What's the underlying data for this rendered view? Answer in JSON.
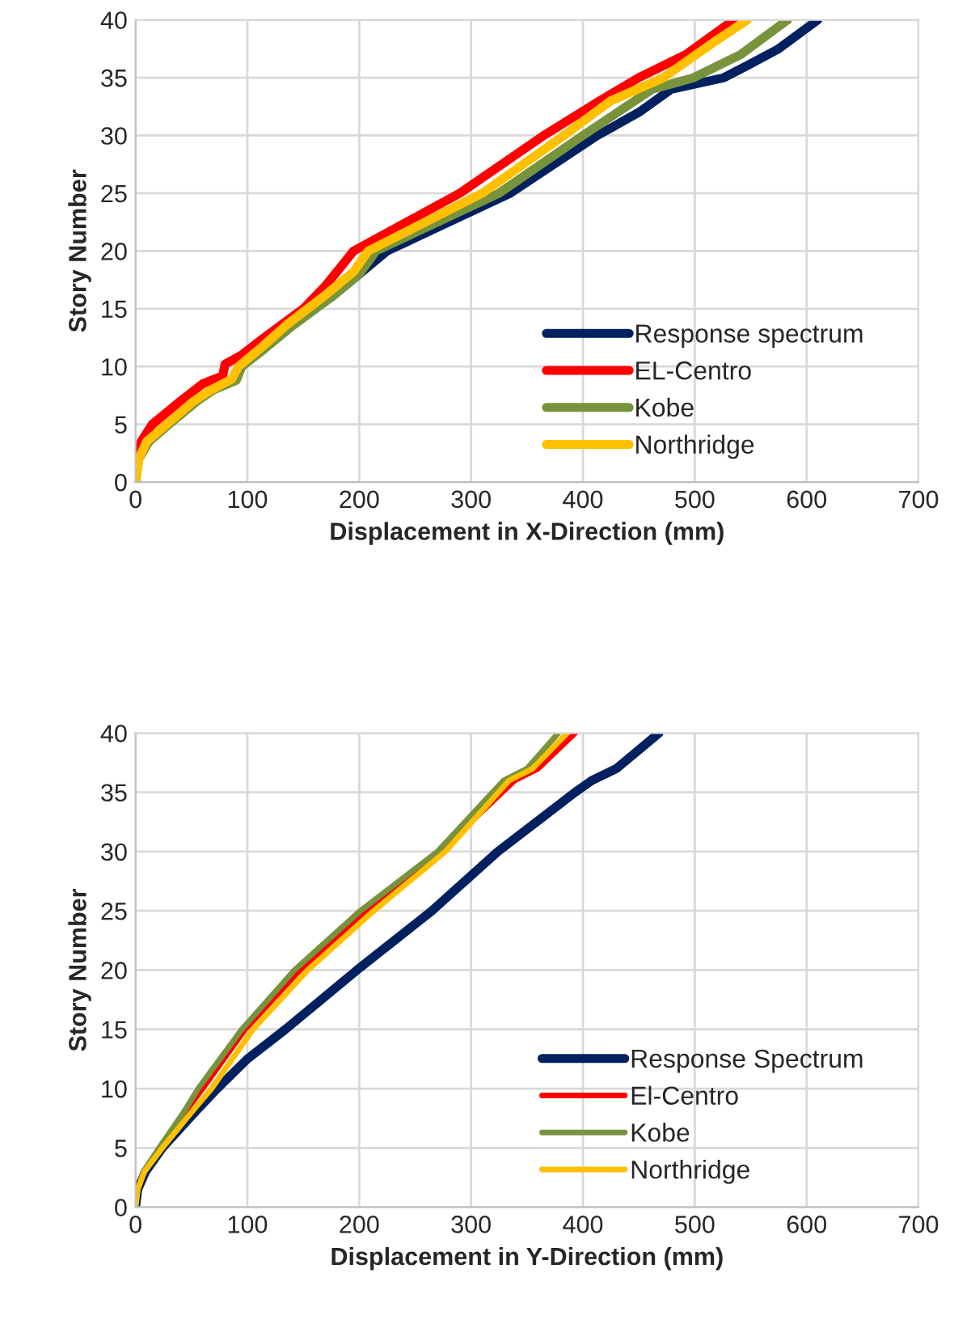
{
  "chart_data": [
    {
      "type": "line",
      "xlabel": "Displacement in X-Direction (mm)",
      "ylabel": "Story Number",
      "xlim": [
        0,
        700
      ],
      "xticks": [
        0,
        100,
        200,
        300,
        400,
        500,
        600,
        700
      ],
      "ylim": [
        0,
        40
      ],
      "yticks": [
        0,
        5,
        10,
        15,
        20,
        25,
        30,
        35,
        40
      ],
      "grid": true,
      "legend": "bottom right",
      "marker": "none",
      "line_style": "solid",
      "series": [
        {
          "name": "Response spectrum",
          "color": "#002060",
          "x": [
            175,
            200,
            225,
            335,
            413,
            450,
            479,
            526,
            546,
            575,
            610
          ],
          "values": [
            16,
            18,
            20,
            25,
            30,
            32,
            34,
            35,
            36,
            37.5,
            40
          ]
        },
        {
          "name": "EL-Centro",
          "color": "#ff0000",
          "x": [
            0,
            2,
            5,
            15,
            40,
            60,
            78,
            80,
            95,
            115,
            150,
            170,
            195,
            290,
            365,
            415,
            450,
            492,
            535
          ],
          "values": [
            0,
            2,
            3.5,
            5,
            7,
            8.5,
            9.2,
            10.2,
            11,
            12.5,
            15,
            17,
            20,
            25,
            30,
            33,
            35,
            37,
            40
          ]
        },
        {
          "name": "Kobe",
          "color": "#77933c",
          "x": [
            0,
            3,
            12,
            30,
            55,
            70,
            90,
            95,
            115,
            140,
            175,
            200,
            215,
            325,
            400,
            462,
            499,
            541,
            583
          ],
          "values": [
            0,
            2,
            3.5,
            5,
            7,
            8,
            8.8,
            10,
            11.5,
            13.5,
            16,
            18,
            20,
            25,
            30,
            34,
            35,
            37,
            40
          ]
        },
        {
          "name": "Northridge",
          "color": "#ffc000",
          "x": [
            0,
            3,
            10,
            28,
            52,
            68,
            86,
            92,
            112,
            135,
            170,
            195,
            208,
            310,
            383,
            425,
            472,
            516,
            547
          ],
          "values": [
            0,
            2,
            3.5,
            5,
            7,
            8,
            8.9,
            10,
            11.6,
            13.6,
            16.2,
            18.2,
            20,
            25,
            30,
            33,
            35,
            38,
            40
          ]
        }
      ]
    },
    {
      "type": "line",
      "xlabel": "Displacement in Y-Direction (mm)",
      "ylabel": "Story Number",
      "xlim": [
        0,
        700
      ],
      "xticks": [
        0,
        100,
        200,
        300,
        400,
        500,
        600,
        700
      ],
      "ylim": [
        0,
        40
      ],
      "yticks": [
        0,
        5,
        10,
        15,
        20,
        25,
        30,
        35,
        40
      ],
      "grid": true,
      "legend": "bottom right",
      "marker": "none",
      "line_style": "solid",
      "series": [
        {
          "name": "Response Spectrum",
          "color": "#002060",
          "x": [
            0,
            2,
            9,
            24,
            53,
            73,
            100,
            134,
            198,
            265,
            324,
            393,
            408,
            430,
            468
          ],
          "values": [
            0,
            1.5,
            3,
            5,
            8,
            10,
            12.5,
            15,
            20,
            25,
            30,
            35,
            36,
            37,
            40
          ]
        },
        {
          "name": "El-Centro",
          "color": "#ff0000",
          "x": [
            22,
            44,
            60,
            98,
            147,
            206,
            272,
            339,
            360,
            393
          ],
          "values": [
            5,
            8,
            10,
            15,
            20,
            25,
            30,
            36,
            37,
            40
          ]
        },
        {
          "name": "Kobe",
          "color": "#77933c",
          "x": [
            0,
            2,
            7,
            21,
            43,
            56,
            95,
            142,
            201,
            270,
            329,
            350,
            378
          ],
          "values": [
            0,
            1.5,
            3,
            5,
            8,
            10,
            15,
            20,
            25,
            30,
            36,
            37,
            40
          ]
        },
        {
          "name": "Northridge",
          "color": "#ffc000",
          "x": [
            0,
            2,
            8,
            24,
            50,
            68,
            105,
            154,
            213,
            277,
            334,
            355,
            386
          ],
          "values": [
            0,
            1.5,
            3,
            5,
            8,
            10,
            15,
            20,
            25,
            30,
            36,
            37,
            40
          ]
        }
      ]
    }
  ]
}
